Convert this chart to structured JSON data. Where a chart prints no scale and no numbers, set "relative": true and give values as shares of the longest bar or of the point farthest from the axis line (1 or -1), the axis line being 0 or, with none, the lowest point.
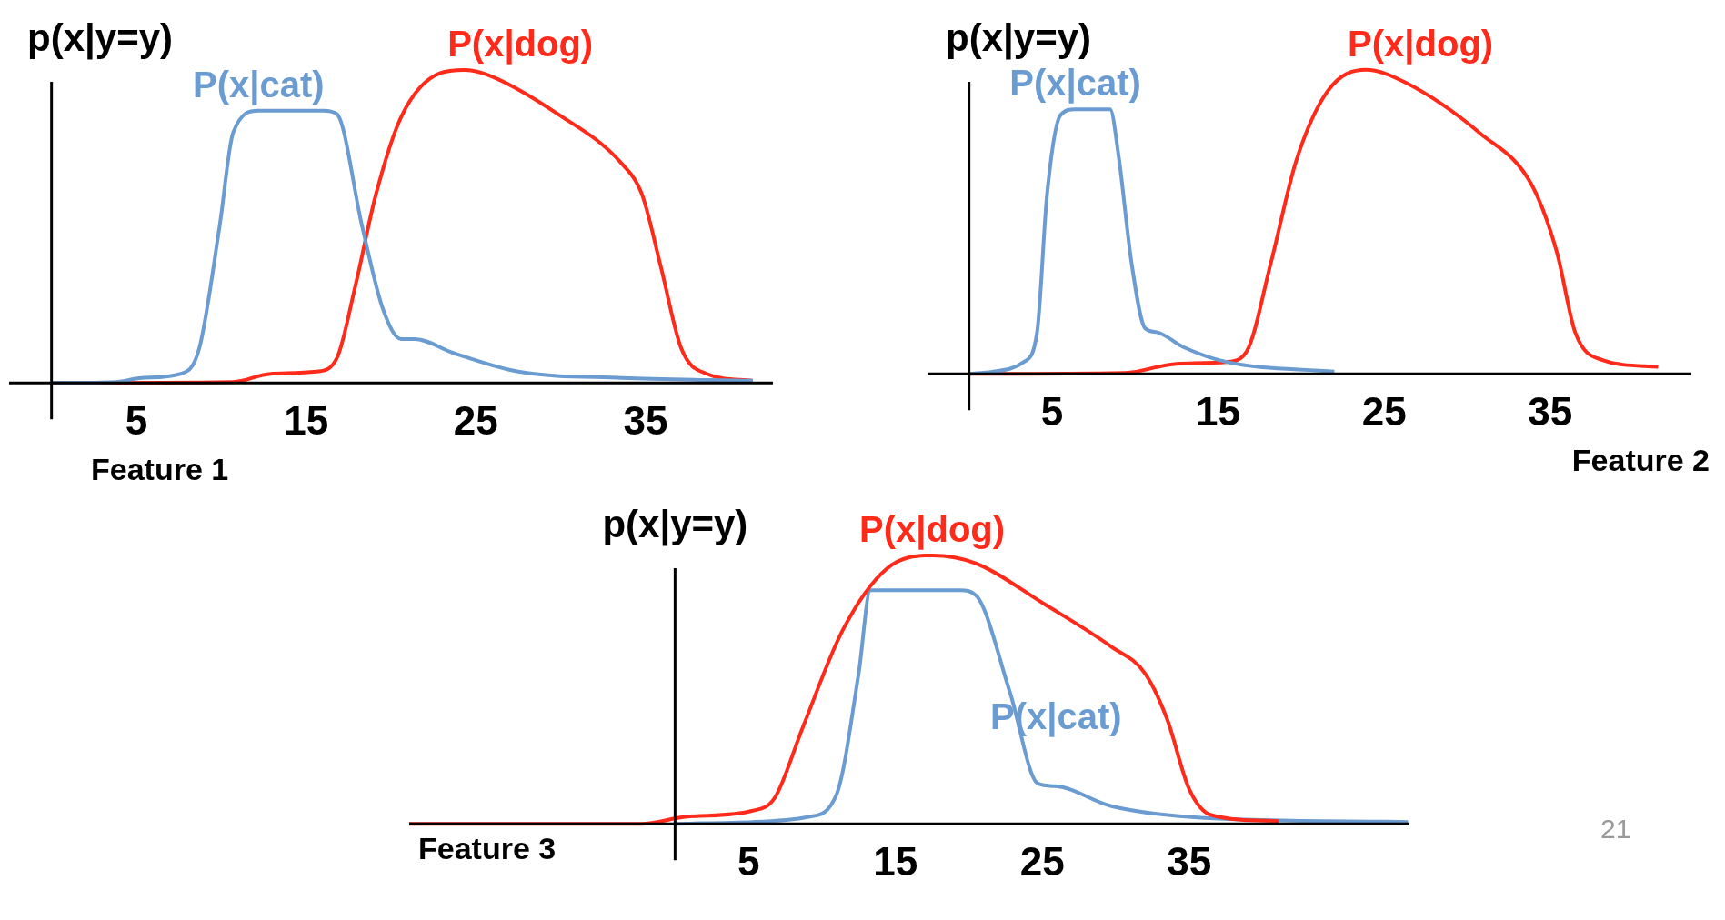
{
  "chart_data": [
    {
      "type": "line",
      "relative": true,
      "ylabel": "p(x|y=y)",
      "xlabel": "Feature 1",
      "xlim": [
        -2.5,
        42.5
      ],
      "xticks": [
        5,
        15,
        25,
        35
      ],
      "series": [
        {
          "name": "P(x|cat)",
          "color": "#6a9bd1",
          "x": [
            0,
            3.8,
            5.3,
            7.6,
            8.7,
            9.9,
            10.7,
            12.2,
            16.0,
            16.8,
            18.3,
            19.5,
            20.6,
            21.4,
            23.7,
            27.5,
            33.6,
            41.3
          ],
          "values": [
            0,
            0.003,
            0.016,
            0.029,
            0.11,
            0.5,
            0.8,
            0.87,
            0.87,
            0.86,
            0.5,
            0.24,
            0.14,
            0.14,
            0.095,
            0.036,
            0.016,
            0.007
          ]
        },
        {
          "name": "P(x|dog)",
          "color": "#ff2a1a",
          "x": [
            0,
            10.7,
            12.9,
            15.6,
            16.8,
            17.9,
            19.1,
            20.6,
            22.9,
            24.4,
            25.9,
            29.8,
            33.6,
            34.8,
            35.9,
            37.1,
            38.6,
            41.3
          ],
          "values": [
            0,
            0.003,
            0.029,
            0.036,
            0.078,
            0.31,
            0.6,
            0.85,
            0.99,
            1,
            0.98,
            0.86,
            0.7,
            0.6,
            0.37,
            0.11,
            0.029,
            0.007
          ]
        }
      ]
    },
    {
      "type": "line",
      "relative": true,
      "ylabel": "p(x|y=y)",
      "xlabel": "Feature 2",
      "xlim": [
        -2.5,
        43.5
      ],
      "xticks": [
        5,
        15,
        25,
        35
      ],
      "series": [
        {
          "name": "P(x|cat)",
          "color": "#6a9bd1",
          "x": [
            0,
            1.4,
            3.3,
            4.1,
            4.7,
            5.5,
            6.4,
            8.5,
            9.0,
            9.8,
            10.6,
            11.3,
            12.9,
            15.5,
            22.0
          ],
          "values": [
            0,
            0.007,
            0.039,
            0.137,
            0.59,
            0.85,
            0.87,
            0.87,
            0.72,
            0.36,
            0.15,
            0.137,
            0.088,
            0.039,
            0.007
          ]
        },
        {
          "name": "P(x|dog)",
          "color": "#ff2a1a",
          "x": [
            0,
            9.4,
            12.5,
            15.5,
            16.7,
            18.2,
            19.7,
            21.6,
            23.9,
            26.2,
            30.8,
            33.9,
            35.4,
            36.5,
            38.1,
            41.5
          ],
          "values": [
            0,
            0.003,
            0.033,
            0.039,
            0.072,
            0.37,
            0.7,
            0.93,
            1,
            0.96,
            0.79,
            0.62,
            0.4,
            0.137,
            0.046,
            0.023
          ]
        }
      ]
    },
    {
      "type": "line",
      "relative": true,
      "ylabel": "p(x|y=y)",
      "xlabel": "Feature 3",
      "xlim": [
        -18.1,
        50
      ],
      "xticks": [
        5,
        15,
        25,
        35
      ],
      "annotations": [
        "21"
      ],
      "series": [
        {
          "name": "P(x|dog)",
          "color": "#ff2a1a",
          "x": [
            -18.1,
            -2.3,
            0.7,
            5.3,
            6.8,
            8.7,
            11.4,
            14.4,
            17.5,
            20.5,
            25.1,
            29.7,
            32.0,
            33.5,
            35.0,
            36.5,
            41.1
          ],
          "values": [
            0,
            0,
            0.026,
            0.049,
            0.098,
            0.36,
            0.72,
            0.95,
            1,
            0.97,
            0.82,
            0.66,
            0.56,
            0.39,
            0.13,
            0.033,
            0.01
          ]
        },
        {
          "name": "P(x|cat)",
          "color": "#6a9bd1",
          "x": [
            0,
            5.3,
            9.1,
            11.0,
            12.5,
            13.3,
            15.2,
            19.4,
            20.5,
            22.8,
            24.7,
            25.9,
            29.7,
            35.8,
            49.9
          ],
          "values": [
            0,
            0.007,
            0.026,
            0.11,
            0.56,
            0.87,
            0.87,
            0.87,
            0.85,
            0.49,
            0.15,
            0.14,
            0.066,
            0.023,
            0.007
          ]
        }
      ]
    }
  ]
}
